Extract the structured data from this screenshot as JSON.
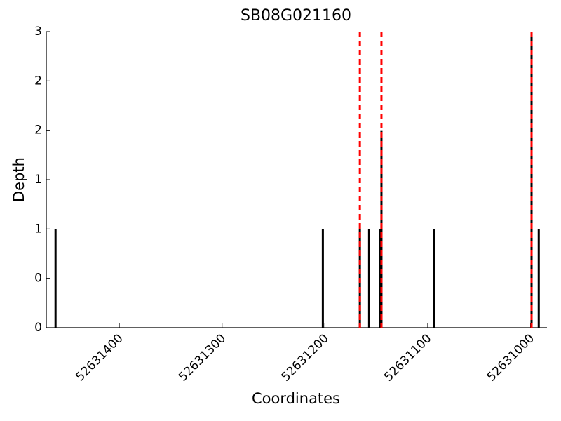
{
  "chart_data": {
    "type": "bar",
    "title": "SB08G021160",
    "x_label": "Coordinates",
    "y_label": "Depth",
    "x": [
      52631462,
      52631202,
      52631166,
      52631157,
      52631146,
      52631145,
      52631094,
      52630999,
      52630992
    ],
    "values": [
      1,
      1,
      1,
      1,
      1,
      2,
      1,
      3,
      1
    ],
    "color": "#000000",
    "xlim": [
      52631471,
      52630984
    ],
    "ylim": [
      0,
      3
    ],
    "xticks": [
      52631400,
      52631300,
      52631200,
      52631100,
      52631000
    ],
    "yticks": [
      0,
      {
        "value": 0.5,
        "label": "0"
      },
      1,
      {
        "value": 1.5,
        "label": "1"
      },
      2,
      {
        "value": 2.5,
        "label": "2"
      },
      3
    ],
    "vlines": [
      52631166,
      52631145,
      52630999
    ],
    "vline_color": "#ff0000",
    "grid": false
  }
}
